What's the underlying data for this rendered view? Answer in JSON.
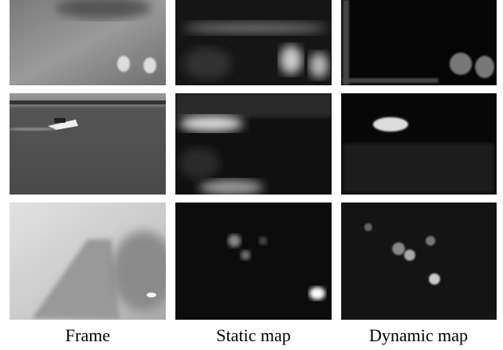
{
  "column_labels": [
    "Frame",
    "Static map",
    "Dynamic map"
  ]
}
